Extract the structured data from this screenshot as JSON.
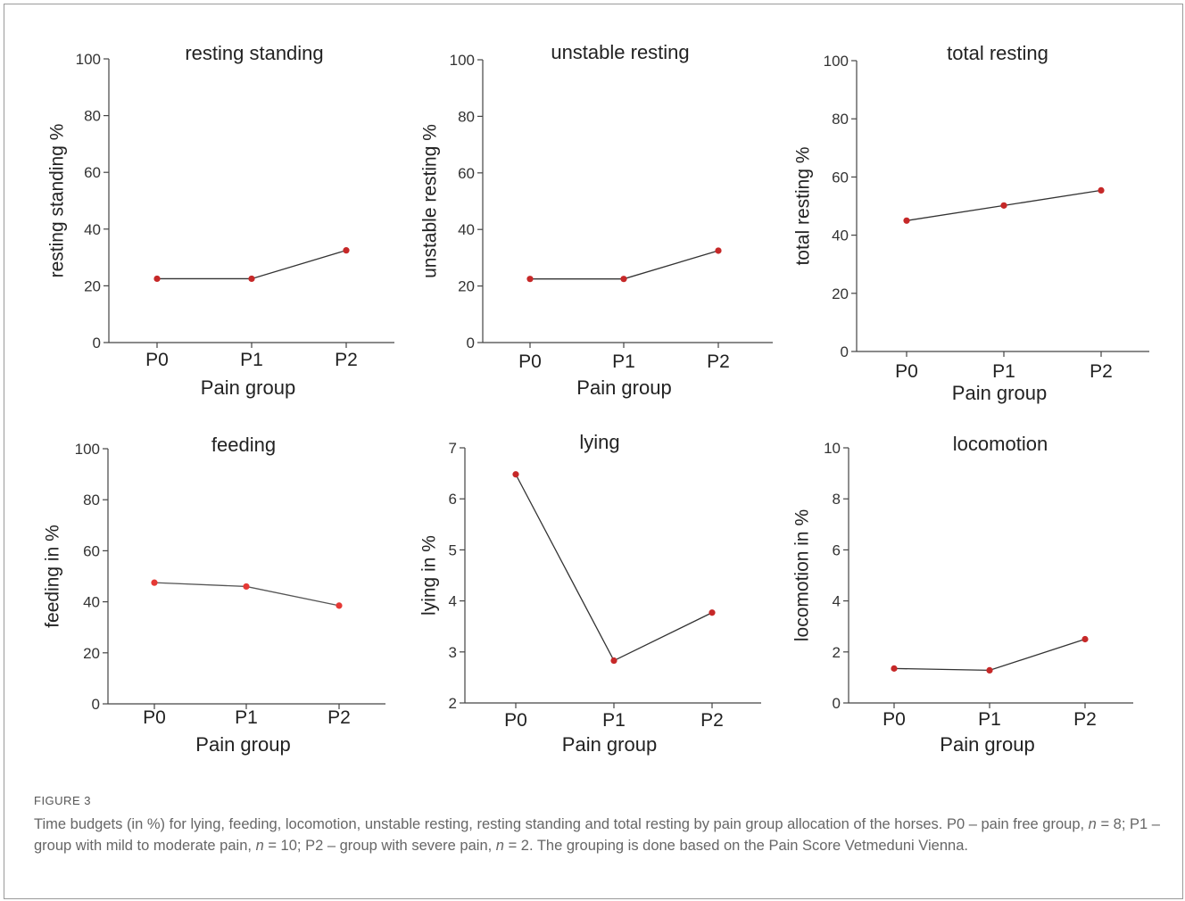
{
  "chart_data": [
    {
      "type": "line",
      "title": "resting standing",
      "xlabel": "Pain group",
      "ylabel": "resting standing %",
      "categories": [
        "P0",
        "P1",
        "P2"
      ],
      "values": [
        22.5,
        22.5,
        32.5
      ],
      "ylim": [
        0,
        100
      ],
      "yticks": [
        0,
        20,
        40,
        60,
        80,
        100
      ],
      "grid": false,
      "marker_color": "#c62828",
      "line_color": "#333333"
    },
    {
      "type": "line",
      "title": "unstable resting",
      "xlabel": "Pain group",
      "ylabel": "unstable resting %",
      "categories": [
        "P0",
        "P1",
        "P2"
      ],
      "values": [
        22.5,
        22.5,
        32.5
      ],
      "ylim": [
        0,
        100
      ],
      "yticks": [
        0,
        20,
        40,
        60,
        80,
        100
      ],
      "grid": false,
      "marker_color": "#c62828",
      "line_color": "#333333"
    },
    {
      "type": "line",
      "title": "total resting",
      "xlabel": "Pain group",
      "ylabel": "total resting %",
      "categories": [
        "P0",
        "P1",
        "P2"
      ],
      "values": [
        45,
        50.2,
        55.4
      ],
      "ylim": [
        0,
        100
      ],
      "yticks": [
        0,
        20,
        40,
        60,
        80,
        100
      ],
      "grid": false,
      "marker_color": "#c62828",
      "line_color": "#333333"
    },
    {
      "type": "line",
      "title": "feeding",
      "xlabel": "Pain group",
      "ylabel": "feeding in %",
      "categories": [
        "P0",
        "P1",
        "P2"
      ],
      "values": [
        47.5,
        46,
        38.5
      ],
      "ylim": [
        0,
        100
      ],
      "yticks": [
        0,
        20,
        40,
        60,
        80,
        100
      ],
      "grid": false,
      "marker_color": "#e53935",
      "line_color": "#555555"
    },
    {
      "type": "line",
      "title": "lying",
      "xlabel": "Pain group",
      "ylabel": "lying in %",
      "categories": [
        "P0",
        "P1",
        "P2"
      ],
      "values": [
        6.48,
        2.83,
        3.77
      ],
      "ylim": [
        2,
        7
      ],
      "yticks": [
        2,
        3,
        4,
        5,
        6,
        7
      ],
      "grid": false,
      "marker_color": "#c62828",
      "line_color": "#333333"
    },
    {
      "type": "line",
      "title": "locomotion",
      "xlabel": "Pain group",
      "ylabel": "locomotion in %",
      "categories": [
        "P0",
        "P1",
        "P2"
      ],
      "values": [
        1.35,
        1.28,
        2.5
      ],
      "ylim": [
        0,
        10
      ],
      "yticks": [
        0,
        2,
        4,
        6,
        8,
        10
      ],
      "grid": false,
      "marker_color": "#c62828",
      "line_color": "#333333"
    }
  ],
  "caption": {
    "label": "FIGURE 3",
    "text_parts": [
      {
        "t": "Time budgets (in %) for lying, feeding, locomotion, unstable resting, resting standing and total resting by pain group allocation of the horses. P0 – pain free group, ",
        "i": false
      },
      {
        "t": "n",
        "i": true
      },
      {
        "t": " = 8; P1 – group with mild to moderate pain, ",
        "i": false
      },
      {
        "t": "n",
        "i": true
      },
      {
        "t": " = 10; P2 – group with severe pain, ",
        "i": false
      },
      {
        "t": "n",
        "i": true
      },
      {
        "t": " = 2. The grouping is done based on the Pain Score Vetmeduni Vienna.",
        "i": false
      }
    ]
  }
}
